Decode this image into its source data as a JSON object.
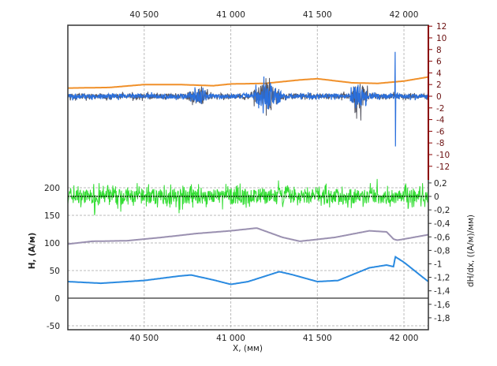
{
  "chart_data": [
    {
      "type": "line",
      "panel": "top",
      "xlabel": "X, (мм)",
      "xlim": [
        40059,
        42141
      ],
      "x_ticks": [
        40500,
        41000,
        41500,
        42000
      ],
      "x_tick_labels": [
        "40 500",
        "41 000",
        "41 500",
        "42 000"
      ],
      "y_axis_side": "right",
      "ylim": [
        -12,
        12
      ],
      "y_ticks": [
        12,
        10,
        8,
        6,
        4,
        2,
        0,
        -2,
        -4,
        -6,
        -8,
        -10,
        -12
      ],
      "y_tick_labels": [
        "12",
        "10",
        "8",
        "6",
        "4",
        "2",
        "0",
        "-2",
        "-4",
        "-6",
        "-8",
        "-10",
        "-12"
      ],
      "axis_color": "#8b0000",
      "grid": "vertical dashed",
      "series": [
        {
          "color": "#f0902a",
          "kind": "smooth",
          "x": [
            40059,
            40300,
            40500,
            40700,
            40900,
            41000,
            41200,
            41400,
            41500,
            41700,
            41850,
            42000,
            42141
          ],
          "y": [
            1.4,
            1.5,
            2.0,
            2.0,
            1.8,
            2.1,
            2.2,
            2.8,
            3.0,
            2.3,
            2.2,
            2.6,
            3.3
          ]
        },
        {
          "color": "#555560",
          "kind": "noise",
          "base_amplitude": 0.8,
          "bursts": [
            {
              "from": 40750,
              "to": 40870,
              "amplitude": 2.8
            },
            {
              "from": 41130,
              "to": 41290,
              "amplitude": 4.5
            },
            {
              "from": 41690,
              "to": 41790,
              "amplitude": 4.8
            }
          ]
        },
        {
          "color": "#2a6fdc",
          "kind": "noise",
          "base_amplitude": 0.7,
          "bursts": [
            {
              "from": 40750,
              "to": 40870,
              "amplitude": 2.2
            },
            {
              "from": 41130,
              "to": 41290,
              "amplitude": 4.2
            },
            {
              "from": 41690,
              "to": 41790,
              "amplitude": 4.0
            }
          ],
          "spike": {
            "x": 41950,
            "max": 7.6,
            "min": -8.6
          }
        }
      ]
    },
    {
      "type": "line",
      "panel": "bottom",
      "xlim": [
        40059,
        42141
      ],
      "ylabel": "H, (А/м)",
      "ylim": [
        -57,
        220
      ],
      "y_ticks": [
        200,
        150,
        100,
        50,
        0,
        -50
      ],
      "y_tick_labels": [
        "200",
        "150",
        "100",
        "50",
        "0",
        "-50"
      ],
      "y2label": "dH/dx, ((А/м)/мм)",
      "y2lim": [
        -1.9,
        0.3
      ],
      "y2_ticks": [
        0.2,
        0,
        -0.2,
        -0.4,
        -0.6,
        -0.8,
        -1,
        -1.2,
        -1.4,
        -1.6,
        -1.8
      ],
      "y2_tick_labels": [
        "0,2",
        "0",
        "-0,2",
        "-0,4",
        "-0,6",
        "-0,8",
        "-1",
        "-1,2",
        "-1,4",
        "-1,6",
        "-1,8"
      ],
      "grid": "horizontal dashed",
      "series": [
        {
          "color": "#33dd33",
          "axis": "y2",
          "kind": "noise",
          "base_amplitude": 0.2,
          "max": 0.3,
          "min": -0.4
        },
        {
          "color": "#9a90b0",
          "axis": "y",
          "kind": "smooth",
          "x": [
            40059,
            40200,
            40400,
            40600,
            40800,
            41000,
            41150,
            41300,
            41400,
            41600,
            41800,
            41900,
            41940,
            41960,
            42000,
            42141
          ],
          "y": [
            98,
            103,
            104,
            110,
            117,
            122,
            127,
            110,
            103,
            110,
            122,
            120,
            107,
            105,
            107,
            115
          ]
        },
        {
          "color": "#2a8ae0",
          "axis": "y",
          "kind": "smooth",
          "x": [
            40059,
            40250,
            40500,
            40700,
            40770,
            40900,
            41000,
            41100,
            41200,
            41280,
            41350,
            41500,
            41620,
            41800,
            41900,
            41940,
            41950,
            42000,
            42100,
            42141
          ],
          "y": [
            30,
            27,
            32,
            40,
            42,
            33,
            25,
            30,
            40,
            48,
            43,
            30,
            32,
            55,
            60,
            57,
            75,
            65,
            40,
            30
          ]
        }
      ]
    }
  ]
}
